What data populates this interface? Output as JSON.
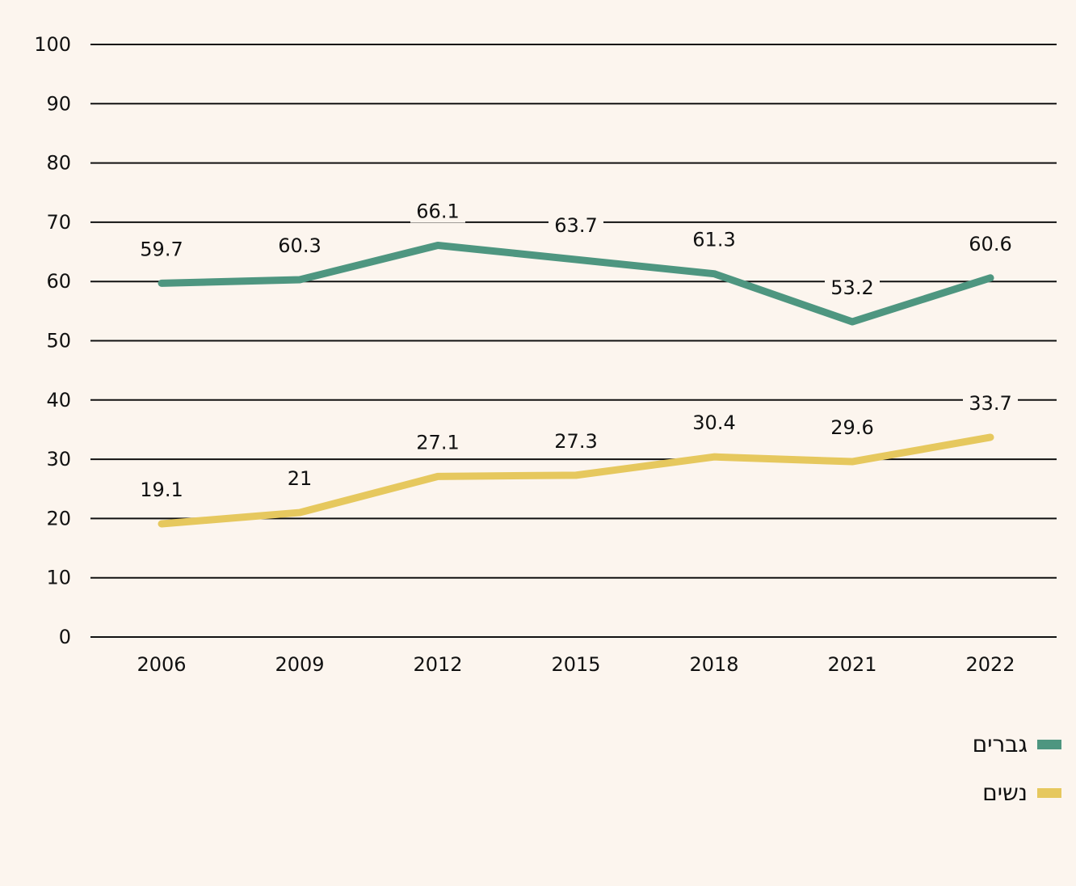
{
  "chart_data": {
    "type": "line",
    "x": [
      "2006",
      "2009",
      "2012",
      "2015",
      "2018",
      "2021",
      "2022"
    ],
    "ylim": [
      0,
      100
    ],
    "yticks": [
      "0",
      "10",
      "20",
      "30",
      "40",
      "50",
      "60",
      "70",
      "80",
      "90",
      "100"
    ],
    "grid": true,
    "legend_position": "bottom-right",
    "series": [
      {
        "name": "גברים",
        "color": "#4e9680",
        "values": [
          59.7,
          60.3,
          66.1,
          63.7,
          61.3,
          53.2,
          60.6
        ],
        "labels": [
          "59.7",
          "60.3",
          "66.1",
          "63.7",
          "61.3",
          "53.2",
          "60.6"
        ]
      },
      {
        "name": "נשים",
        "color": "#e6c85e",
        "values": [
          19.1,
          21,
          27.1,
          27.3,
          30.4,
          29.6,
          33.7
        ],
        "labels": [
          "19.1",
          "21",
          "27.1",
          "27.3",
          "30.4",
          "29.6",
          "33.7"
        ]
      }
    ]
  }
}
